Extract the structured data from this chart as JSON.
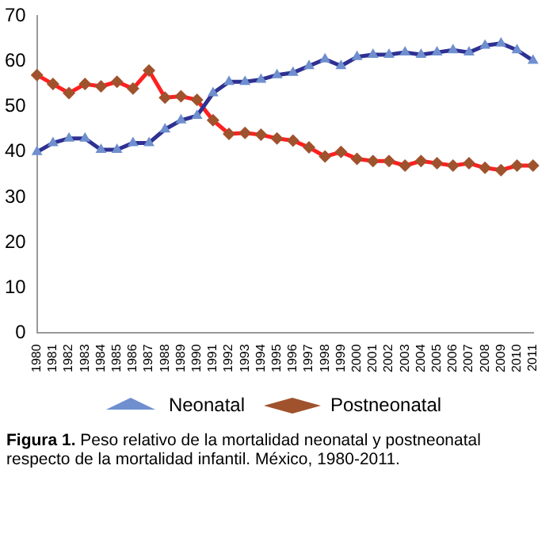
{
  "chart_data": {
    "type": "line",
    "categories": [
      "1980",
      "1981",
      "1982",
      "1983",
      "1984",
      "1985",
      "1986",
      "1987",
      "1988",
      "1989",
      "1990",
      "1991",
      "1992",
      "1993",
      "1994",
      "1995",
      "1996",
      "1997",
      "1998",
      "1999",
      "2000",
      "2001",
      "2002",
      "2003",
      "2004",
      "2005",
      "2006",
      "2007",
      "2008",
      "2009",
      "2010",
      "2011"
    ],
    "series": [
      {
        "name": "Neonatal",
        "color": "#2e3192",
        "marker": "triangle",
        "values": [
          40,
          42,
          43,
          43,
          40.5,
          40.5,
          42,
          42,
          45,
          47,
          48,
          53,
          55.5,
          55.5,
          56,
          57,
          57.5,
          59,
          60.5,
          59,
          61,
          61.5,
          61.5,
          62,
          61.5,
          62,
          62.5,
          62,
          63.5,
          64,
          62.5,
          60.2
        ]
      },
      {
        "name": "Postneonatal",
        "color": "#ff2020",
        "marker": "diamond",
        "values": [
          57,
          55,
          53,
          55,
          54.5,
          55.5,
          54,
          58,
          52,
          52.3,
          51.5,
          47,
          44,
          44.2,
          43.8,
          43,
          42.5,
          41,
          39,
          40,
          38.5,
          38,
          38,
          37,
          38,
          37.5,
          37,
          37.5,
          36.5,
          36,
          37,
          37
        ]
      }
    ],
    "ylim": [
      0,
      70
    ],
    "yticks": [
      0,
      10,
      20,
      30,
      40,
      50,
      60,
      70
    ],
    "grid": false,
    "legend": "bottom",
    "line_style": "solid",
    "annotations": [
      "Figura 1. Peso relativo de la mortalidad neonatal y postneonatal respecto de la mortalidad infantil. México, 1980-2011."
    ]
  }
}
